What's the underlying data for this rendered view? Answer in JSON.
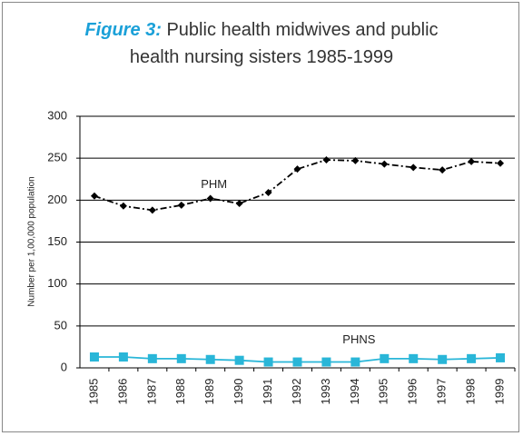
{
  "chart_data": {
    "type": "line",
    "figure_label": "Figure 3:",
    "title": "Public health midwives and public health nursing sisters 1985-1999",
    "y_label": "Number per 1,00,000 population",
    "categories": [
      "1985",
      "1986",
      "1987",
      "1988",
      "1989",
      "1990",
      "1991",
      "1992",
      "1993",
      "1994",
      "1995",
      "1996",
      "1997",
      "1998",
      "1999"
    ],
    "series": [
      {
        "name": "PHM",
        "color": "#000000",
        "marker": "diamond",
        "dash": "dashdot",
        "values": [
          205,
          193,
          188,
          194,
          202,
          196,
          209,
          237,
          248,
          247,
          243,
          239,
          236,
          246,
          244
        ]
      },
      {
        "name": "PHNS",
        "color": "#29b6d8",
        "marker": "square",
        "dash": "solid",
        "values": [
          13,
          13,
          11,
          11,
          10,
          9,
          7,
          7,
          7,
          7,
          11,
          11,
          10,
          11,
          12
        ]
      }
    ],
    "annotations": [
      {
        "text": "PHM",
        "x": "1989",
        "y": 218
      },
      {
        "text": "PHNS",
        "x": "1994",
        "y": 33
      }
    ],
    "ylim": [
      0,
      300
    ],
    "yticks": [
      0,
      50,
      100,
      150,
      200,
      250,
      300
    ],
    "grid": true
  }
}
